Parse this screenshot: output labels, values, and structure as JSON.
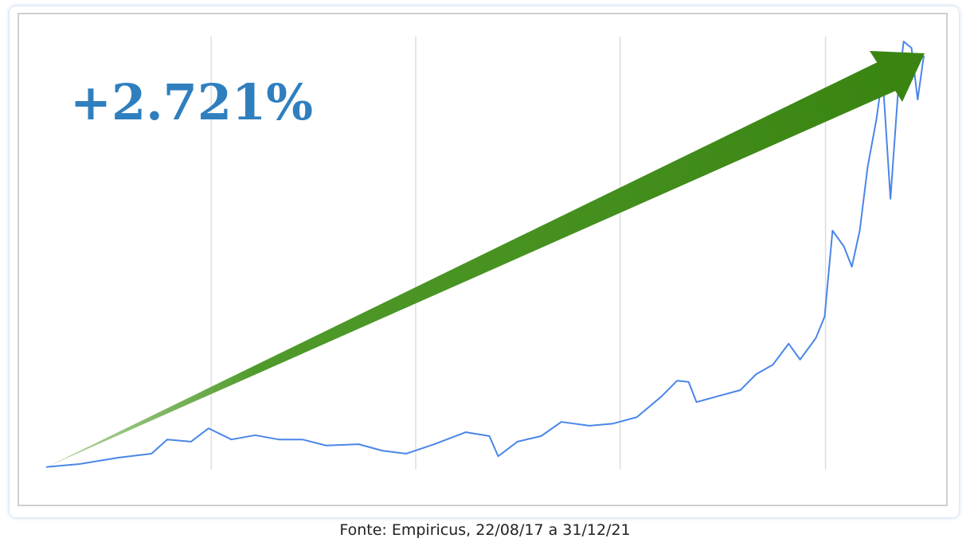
{
  "chart_data": {
    "type": "line",
    "annotation": "+2.721%",
    "caption": "Fonte: Empiricus, 22/08/17 a 31/12/21",
    "x": [
      0,
      3.8,
      8.3,
      12.0,
      13.8,
      16.5,
      18.5,
      21.1,
      23.8,
      26.5,
      29.2,
      31.9,
      35.6,
      38.3,
      41.0,
      44.2,
      47.8,
      50.5,
      51.5,
      53.7,
      56.4,
      58.7,
      61.9,
      64.6,
      67.3,
      70.1,
      71.9,
      73.2,
      74.1,
      76.4,
      79.1,
      80.9,
      82.8,
      84.6,
      85.9,
      87.7,
      88.7,
      89.6,
      90.9,
      91.8,
      92.7,
      93.6,
      94.6,
      95.3,
      96.2,
      97.1,
      97.7,
      98.6,
      99.3,
      100
    ],
    "series": [
      {
        "color": "#4a86e8",
        "values": [
          0.6,
          1.3,
          2.8,
          3.7,
          7.0,
          6.5,
          9.6,
          7.0,
          8.0,
          7.0,
          7.0,
          5.6,
          5.9,
          4.4,
          3.7,
          5.9,
          8.7,
          7.8,
          3.1,
          6.5,
          7.8,
          11.1,
          10.2,
          10.7,
          12.2,
          17.0,
          20.7,
          20.4,
          15.7,
          17.0,
          18.5,
          22.2,
          24.4,
          29.3,
          25.6,
          30.6,
          35.6,
          55.6,
          51.9,
          47.2,
          55.6,
          70.4,
          81.5,
          91.7,
          63.0,
          88.9,
          99.6,
          98.1,
          86.1,
          96.3
        ]
      }
    ],
    "xlim": [
      0,
      100
    ],
    "ylim": [
      0,
      100
    ],
    "grid_x": [
      18.8,
      42.1,
      65.4,
      88.8
    ],
    "grid_color": "#dddddd"
  }
}
